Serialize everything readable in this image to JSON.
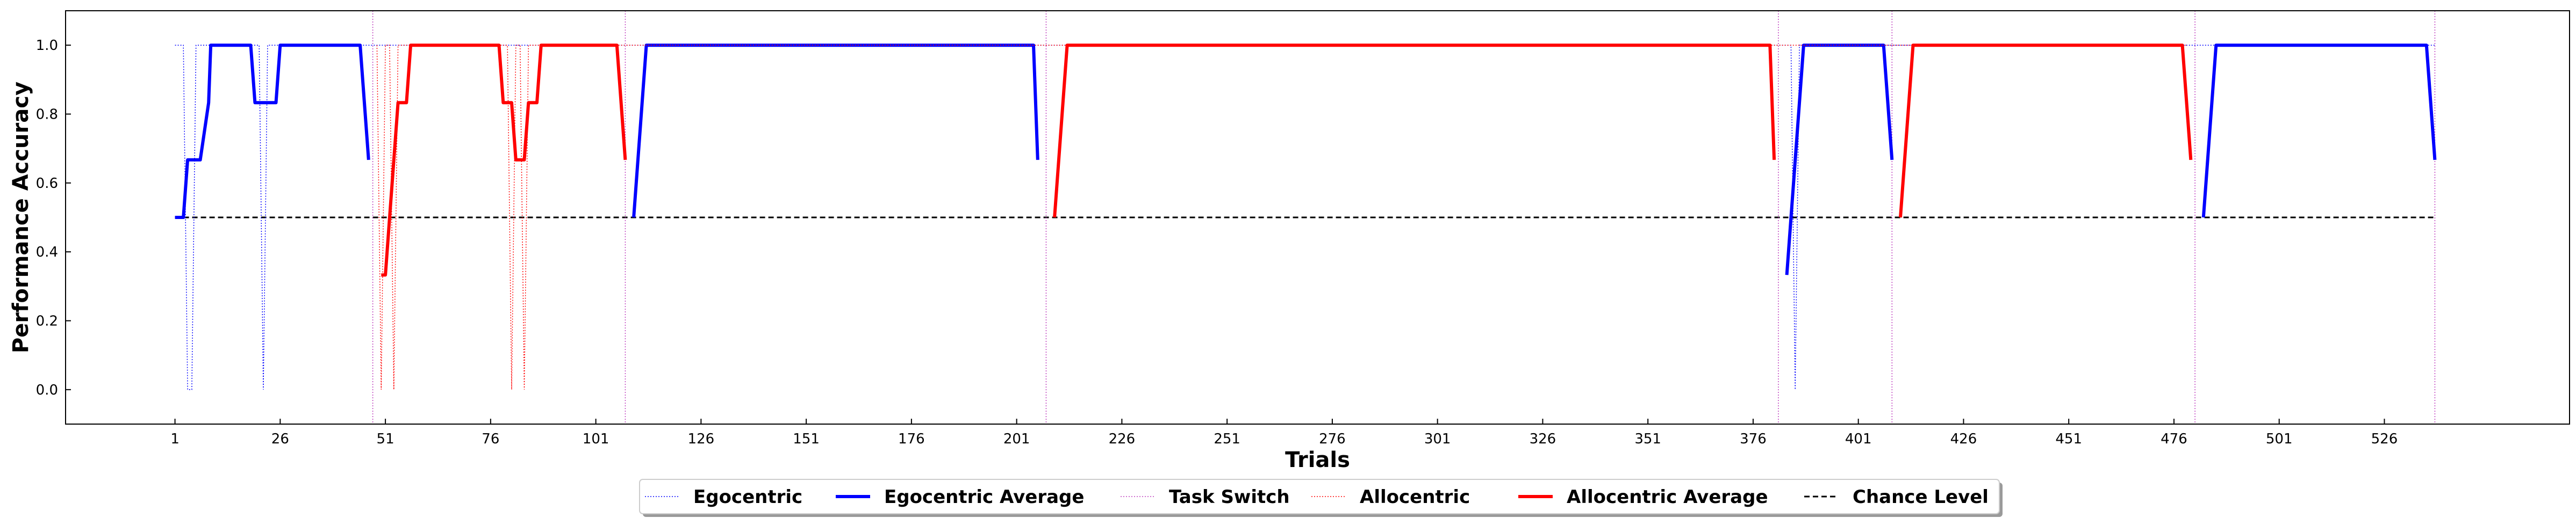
{
  "chart_data": {
    "type": "line",
    "xlabel": "Trials",
    "ylabel": "Performance Accuracy",
    "xlim": [
      -25,
      570
    ],
    "ylim": [
      -0.1,
      1.1
    ],
    "xticks": [
      1,
      26,
      51,
      76,
      101,
      126,
      151,
      176,
      201,
      226,
      251,
      276,
      301,
      326,
      351,
      376,
      401,
      426,
      451,
      476,
      501,
      526
    ],
    "yticks": [
      0.0,
      0.2,
      0.4,
      0.6,
      0.8,
      1.0
    ],
    "ytick_labels": [
      "0.0",
      "0.2",
      "0.4",
      "0.6",
      "0.8",
      "1.0"
    ],
    "grid": false,
    "legend": {
      "position": "bottom-center",
      "entries": [
        "Egocentric",
        "Egocentric Average",
        "Task Switch",
        "Allocentric",
        "Allocentric Average",
        "Chance Level"
      ]
    },
    "colors": {
      "egocentric": "#0000ff",
      "allocentric": "#ff0000",
      "task_switch": "#bf40bf",
      "chance": "#000000"
    },
    "task_switches": [
      48,
      108,
      208,
      382,
      409,
      481,
      538
    ],
    "chance_level": {
      "value": 0.5,
      "x": [
        1,
        538
      ]
    },
    "series": [
      {
        "name": "Egocentric",
        "style": "dotted-thin",
        "color": "#0000ff",
        "points": [
          [
            1,
            1
          ],
          [
            2,
            1
          ],
          [
            3,
            1
          ],
          [
            4,
            0
          ],
          [
            5,
            0
          ],
          [
            6,
            1
          ],
          [
            7,
            1
          ],
          [
            8,
            1
          ],
          [
            9,
            1
          ],
          [
            10,
            1
          ],
          [
            11,
            1
          ],
          [
            12,
            1
          ],
          [
            13,
            1
          ],
          [
            14,
            1
          ],
          [
            15,
            1
          ],
          [
            16,
            1
          ],
          [
            17,
            1
          ],
          [
            18,
            1
          ],
          [
            19,
            1
          ],
          [
            20,
            1
          ],
          [
            21,
            1
          ],
          [
            22,
            0
          ],
          [
            23,
            1
          ],
          [
            24,
            1
          ],
          [
            25,
            1
          ],
          [
            26,
            1
          ],
          [
            27,
            1
          ],
          [
            47,
            1
          ],
          [
            385,
            1
          ],
          [
            386,
            0
          ],
          [
            387,
            1
          ],
          [
            388,
            1
          ],
          [
            409,
            1
          ],
          [
            482,
            1
          ],
          [
            483,
            1
          ],
          [
            484,
            1
          ],
          [
            538,
            1
          ]
        ]
      },
      {
        "name": "Egocentric Average",
        "style": "solid-thick",
        "color": "#0000ff",
        "segments": [
          [
            [
              1,
              0.5
            ],
            [
              3,
              0.5
            ],
            [
              4,
              0.667
            ],
            [
              7,
              0.667
            ],
            [
              9,
              0.833
            ],
            [
              9.5,
              1.0
            ],
            [
              19,
              1.0
            ],
            [
              20,
              0.833
            ],
            [
              25,
              0.833
            ],
            [
              26,
              1.0
            ],
            [
              45,
              1.0
            ],
            [
              47,
              0.667
            ]
          ],
          [
            [
              110,
              0.5
            ],
            [
              113,
              1.0
            ],
            [
              205,
              1.0
            ],
            [
              206,
              0.667
            ]
          ],
          [
            [
              384,
              0.333
            ],
            [
              388,
              1.0
            ],
            [
              407,
              1.0
            ],
            [
              409,
              0.667
            ]
          ],
          [
            [
              483,
              0.5
            ],
            [
              486,
              1.0
            ],
            [
              536,
              1.0
            ],
            [
              538,
              0.667
            ]
          ]
        ]
      },
      {
        "name": "Allocentric",
        "style": "dotted-thin",
        "color": "#ff0000",
        "points": [
          [
            49,
            1
          ],
          [
            50,
            0
          ],
          [
            51,
            1
          ],
          [
            52,
            1
          ],
          [
            53,
            0
          ],
          [
            54,
            1
          ],
          [
            55,
            1
          ],
          [
            80,
            1
          ],
          [
            81,
            0
          ],
          [
            82,
            1
          ],
          [
            83,
            1
          ],
          [
            84,
            0
          ],
          [
            85,
            1
          ],
          [
            86,
            1
          ],
          [
            87,
            1
          ],
          [
            107,
            1
          ],
          [
            209,
            1
          ],
          [
            210,
            1
          ],
          [
            211,
            1
          ],
          [
            380,
            1
          ],
          [
            411,
            1
          ],
          [
            412,
            1
          ],
          [
            413,
            1
          ],
          [
            479,
            1
          ]
        ]
      },
      {
        "name": "Allocentric Average",
        "style": "solid-thick",
        "color": "#ff0000",
        "segments": [
          [
            [
              50,
              0.333
            ],
            [
              51,
              0.333
            ],
            [
              54,
              0.833
            ],
            [
              56,
              0.833
            ],
            [
              57,
              1.0
            ],
            [
              78,
              1.0
            ],
            [
              79,
              0.833
            ],
            [
              81,
              0.833
            ],
            [
              82,
              0.667
            ],
            [
              84,
              0.667
            ],
            [
              85,
              0.833
            ],
            [
              87,
              0.833
            ],
            [
              88,
              1.0
            ],
            [
              106,
              1.0
            ],
            [
              108,
              0.667
            ]
          ],
          [
            [
              210,
              0.5
            ],
            [
              213,
              1.0
            ],
            [
              380,
              1.0
            ],
            [
              381,
              0.667
            ]
          ],
          [
            [
              411,
              0.5
            ],
            [
              414,
              1.0
            ],
            [
              478,
              1.0
            ],
            [
              480,
              0.667
            ]
          ]
        ]
      }
    ]
  }
}
